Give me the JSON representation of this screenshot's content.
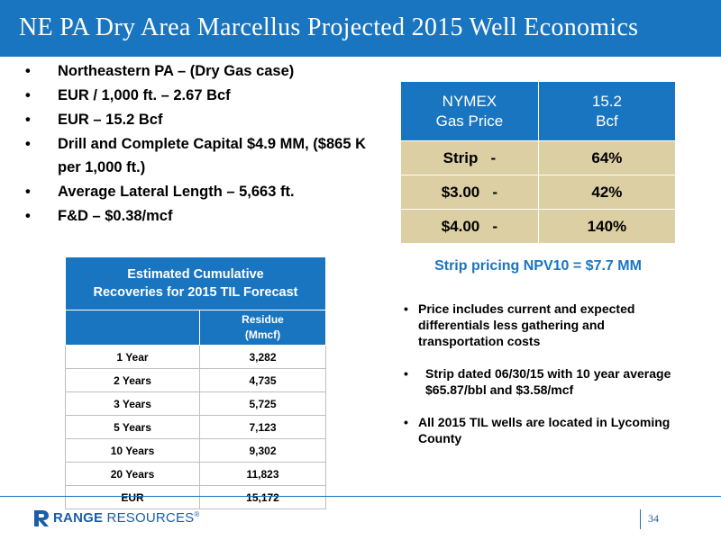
{
  "header": {
    "title": "NE PA Dry Area Marcellus Projected 2015 Well Economics"
  },
  "bullets": [
    "Northeastern PA – (Dry Gas case)",
    "EUR / 1,000 ft. – 2.67 Bcf",
    "EUR – 15.2 Bcf",
    "Drill and Complete Capital $4.9 MM, ($865 K per 1,000 ft.)",
    "Average Lateral Length – 5,663 ft.",
    "F&D – $0.38/mcf"
  ],
  "bullet_glyph": "•",
  "price_table": {
    "header": {
      "col1_line1": "NYMEX",
      "col1_line2": "Gas Price",
      "col2_line1": "15.2",
      "col2_line2": "Bcf"
    },
    "rows": [
      {
        "price": "Strip   -",
        "value": "64%"
      },
      {
        "price": "$3.00   -",
        "value": "42%"
      },
      {
        "price": "$4.00   -",
        "value": "140%"
      }
    ],
    "colors": {
      "header_bg": "#1a75c0",
      "body_bg": "#dccfa3"
    }
  },
  "npv_text": "Strip pricing NPV10 = $7.7 MM",
  "notes": [
    "Price includes current and expected differentials less gathering and transportation costs",
    "Strip dated 06/30/15 with 10 year average $65.87/bbl and $3.58/mcf",
    "All 2015 TIL wells are located in Lycoming County"
  ],
  "recoveries_table": {
    "title_line1": "Estimated Cumulative",
    "title_line2": "Recoveries for 2015 TIL Forecast",
    "col_header_line1": "Residue",
    "col_header_line2": "(Mmcf)",
    "rows": [
      {
        "period": "1 Year",
        "value": "3,282"
      },
      {
        "period": "2 Years",
        "value": "4,735"
      },
      {
        "period": "3 Years",
        "value": "5,725"
      },
      {
        "period": "5 Years",
        "value": "7,123"
      },
      {
        "period": "10 Years",
        "value": "9,302"
      },
      {
        "period": "20 Years",
        "value": "11,823"
      },
      {
        "period": "EUR",
        "value": "15,172"
      }
    ]
  },
  "footer": {
    "brand_bold": "RANGE",
    "brand_rest": " RESOURCES",
    "registered": "®",
    "page_number": "34"
  },
  "colors": {
    "accent": "#1a75c0",
    "tan": "#dccfa3"
  }
}
